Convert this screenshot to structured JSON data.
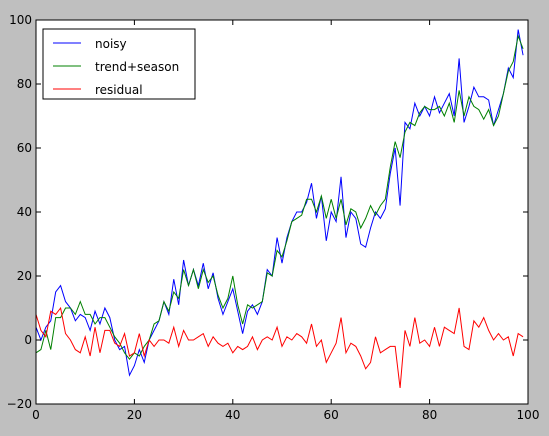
{
  "chart_data": {
    "type": "line",
    "title": "",
    "xlabel": "",
    "ylabel": "",
    "xlim": [
      0,
      100
    ],
    "ylim": [
      -20,
      100
    ],
    "x_ticks": [
      "0",
      "20",
      "40",
      "60",
      "80",
      "100"
    ],
    "y_ticks": [
      "−20",
      "0",
      "20",
      "40",
      "60",
      "80",
      "100"
    ],
    "grid": false,
    "legend_position": "top-left",
    "x": [
      0,
      1,
      2,
      3,
      4,
      5,
      6,
      7,
      8,
      9,
      10,
      11,
      12,
      13,
      14,
      15,
      16,
      17,
      18,
      19,
      20,
      21,
      22,
      23,
      24,
      25,
      26,
      27,
      28,
      29,
      30,
      31,
      32,
      33,
      34,
      35,
      36,
      37,
      38,
      39,
      40,
      41,
      42,
      43,
      44,
      45,
      46,
      47,
      48,
      49,
      50,
      51,
      52,
      53,
      54,
      55,
      56,
      57,
      58,
      59,
      60,
      61,
      62,
      63,
      64,
      65,
      66,
      67,
      68,
      69,
      70,
      71,
      72,
      73,
      74,
      75,
      76,
      77,
      78,
      79,
      80,
      81,
      82,
      83,
      84,
      85,
      86,
      87,
      88,
      89,
      90,
      91,
      92,
      93,
      94,
      95,
      96,
      97,
      98,
      99
    ],
    "series": [
      {
        "name": "noisy",
        "color": "#0000ff",
        "values": [
          4,
          0,
          4,
          6,
          15,
          17,
          12,
          10,
          6,
          8,
          7,
          3,
          9,
          5,
          10,
          7,
          0,
          -3,
          -2,
          -11,
          -8,
          -3,
          -7,
          0,
          3,
          6,
          12,
          8,
          19,
          11,
          25,
          17,
          22,
          17,
          24,
          16,
          21,
          13,
          8,
          12,
          16,
          9,
          2,
          9,
          11,
          8,
          12,
          22,
          20,
          32,
          24,
          32,
          37,
          40,
          40,
          43,
          49,
          38,
          45,
          31,
          40,
          37,
          51,
          32,
          40,
          38,
          30,
          29,
          35,
          40,
          38,
          41,
          52,
          60,
          42,
          68,
          66,
          74,
          70,
          73,
          70,
          76,
          71,
          74,
          77,
          70,
          88,
          68,
          73,
          79,
          76,
          76,
          75,
          67,
          72,
          77,
          85,
          82,
          97,
          89
        ]
      },
      {
        "name": "trend+season",
        "color": "#008000",
        "values": [
          -4,
          -3,
          3,
          -3,
          7,
          7,
          10,
          10,
          8,
          12,
          8,
          8,
          5,
          7,
          7,
          4,
          1,
          -1,
          -4,
          -6,
          -4,
          -5,
          -2,
          0,
          5,
          6,
          12,
          9,
          15,
          13,
          22,
          17,
          22,
          16,
          22,
          18,
          20,
          14,
          10,
          13,
          20,
          11,
          5,
          11,
          10,
          11,
          12,
          21,
          20,
          28,
          26,
          31,
          37,
          38,
          39,
          44,
          44,
          40,
          45,
          38,
          44,
          38,
          44,
          36,
          41,
          40,
          35,
          38,
          42,
          39,
          42,
          44,
          54,
          62,
          57,
          65,
          68,
          67,
          71,
          73,
          72,
          72,
          73,
          70,
          74,
          68,
          78,
          70,
          76,
          73,
          72,
          69,
          72,
          67,
          70,
          77,
          84,
          87,
          95,
          91
        ]
      },
      {
        "name": "residual",
        "color": "#ff0000",
        "values": [
          8,
          3,
          1,
          9,
          8,
          10,
          2,
          0,
          -3,
          -4,
          1,
          -5,
          4,
          -4,
          3,
          3,
          -1,
          -2,
          2,
          -5,
          -4,
          2,
          -5,
          0,
          -2,
          0,
          0,
          -1,
          4,
          -2,
          3,
          0,
          0,
          1,
          2,
          -2,
          1,
          -1,
          -2,
          -1,
          -4,
          -2,
          -3,
          -2,
          1,
          -3,
          0,
          1,
          0,
          4,
          -2,
          1,
          0,
          2,
          1,
          -1,
          5,
          -2,
          0,
          -7,
          -4,
          -1,
          7,
          -4,
          -1,
          -2,
          -5,
          -9,
          -7,
          1,
          -4,
          -3,
          -2,
          -2,
          -15,
          3,
          -2,
          7,
          -1,
          0,
          -2,
          4,
          -2,
          4,
          3,
          2,
          10,
          -2,
          -3,
          6,
          4,
          7,
          3,
          0,
          2,
          0,
          1,
          -5,
          2,
          1
        ]
      }
    ]
  }
}
